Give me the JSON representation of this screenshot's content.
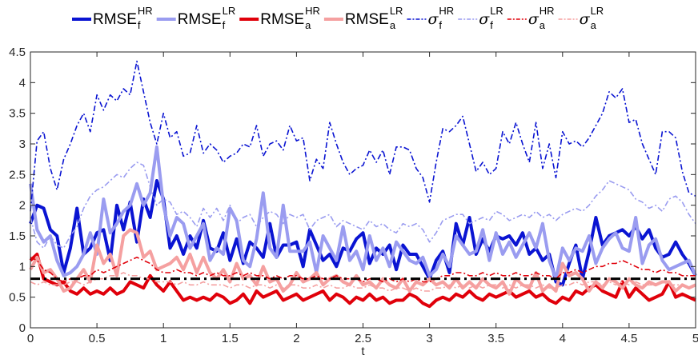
{
  "chart_data": {
    "type": "line",
    "xlabel": "t",
    "ylabel": "",
    "xlim": [
      0,
      5
    ],
    "ylim": [
      0,
      4.5
    ],
    "x_ticks": [
      "0",
      "0.5",
      "1",
      "1.5",
      "2",
      "2.5",
      "3",
      "3.5",
      "4",
      "4.5",
      "5"
    ],
    "y_ticks": [
      "0",
      "0.5",
      "1",
      "1.5",
      "2",
      "2.5",
      "3",
      "3.5",
      "4",
      "4.5"
    ],
    "grid": false,
    "legend_position": "top",
    "colors": {
      "dark_blue": "#0a14d2",
      "light_blue": "#9a9cf0",
      "dark_red": "#e0000a",
      "light_red": "#f5a0a0",
      "reference": "#000000"
    },
    "legend": [
      {
        "base": "RMSE",
        "sup": "HR",
        "sub": "f",
        "symbol": false
      },
      {
        "base": "RMSE",
        "sup": "LR",
        "sub": "f",
        "symbol": false
      },
      {
        "base": "RMSE",
        "sup": "HR",
        "sub": "a",
        "symbol": false
      },
      {
        "base": "RMSE",
        "sup": "LR",
        "sub": "a",
        "symbol": false
      },
      {
        "base": "σ",
        "sup": "HR",
        "sub": "f",
        "symbol": true
      },
      {
        "base": "σ",
        "sup": "LR",
        "sub": "f",
        "symbol": true
      },
      {
        "base": "σ",
        "sup": "HR",
        "sub": "a",
        "symbol": true
      },
      {
        "base": "σ",
        "sup": "LR",
        "sub": "a",
        "symbol": true
      }
    ],
    "reference_line": {
      "y": 0.8,
      "style": "dash-dot"
    },
    "x": [
      0,
      0.05,
      0.1,
      0.15,
      0.2,
      0.25,
      0.3,
      0.35,
      0.4,
      0.45,
      0.5,
      0.55,
      0.6,
      0.65,
      0.7,
      0.75,
      0.8,
      0.85,
      0.9,
      0.95,
      1.0,
      1.05,
      1.1,
      1.15,
      1.2,
      1.25,
      1.3,
      1.35,
      1.4,
      1.45,
      1.5,
      1.55,
      1.6,
      1.65,
      1.7,
      1.75,
      1.8,
      1.85,
      1.9,
      1.95,
      2.0,
      2.05,
      2.1,
      2.15,
      2.2,
      2.25,
      2.3,
      2.35,
      2.4,
      2.45,
      2.5,
      2.55,
      2.6,
      2.65,
      2.7,
      2.75,
      2.8,
      2.85,
      2.9,
      2.95,
      3.0,
      3.05,
      3.1,
      3.15,
      3.2,
      3.25,
      3.3,
      3.35,
      3.4,
      3.45,
      3.5,
      3.55,
      3.6,
      3.65,
      3.7,
      3.75,
      3.8,
      3.85,
      3.9,
      3.95,
      4.0,
      4.05,
      4.1,
      4.15,
      4.2,
      4.25,
      4.3,
      4.35,
      4.4,
      4.45,
      4.5,
      4.55,
      4.6,
      4.65,
      4.7,
      4.75,
      4.8,
      4.85,
      4.9,
      4.95,
      5.0
    ],
    "series": [
      {
        "name": "RMSE_f^HR",
        "color": "#0a14d2",
        "style": "solid",
        "width": 4,
        "values": [
          1.7,
          2.0,
          1.95,
          1.6,
          1.5,
          0.9,
          1.3,
          1.95,
          1.2,
          1.3,
          1.55,
          1.6,
          1.1,
          2.0,
          1.6,
          2.05,
          1.4,
          2.1,
          1.8,
          2.4,
          2.1,
          1.3,
          1.5,
          1.2,
          1.5,
          1.3,
          1.75,
          1.3,
          1.25,
          1.55,
          1.1,
          1.45,
          1.05,
          1.4,
          1.3,
          1.15,
          1.7,
          1.15,
          1.35,
          1.35,
          1.4,
          1.0,
          1.6,
          1.35,
          1.1,
          1.2,
          1.0,
          1.3,
          1.25,
          1.45,
          1.55,
          1.05,
          1.3,
          1.2,
          1.35,
          0.95,
          1.35,
          1.2,
          1.2,
          1.0,
          0.8,
          1.1,
          1.25,
          0.9,
          1.7,
          1.35,
          1.8,
          1.2,
          1.45,
          1.25,
          1.5,
          1.45,
          1.5,
          1.35,
          1.55,
          1.2,
          1.3,
          1.1,
          1.2,
          0.75,
          0.7,
          1.05,
          1.35,
          0.8,
          1.25,
          1.8,
          1.35,
          1.5,
          1.55,
          1.6,
          1.5,
          1.65,
          1.45,
          1.6,
          1.3,
          1.15,
          1.2,
          1.4,
          1.2,
          1.05,
          0.85
        ]
      },
      {
        "name": "RMSE_f^LR",
        "color": "#9a9cf0",
        "style": "solid",
        "width": 4,
        "values": [
          2.35,
          1.6,
          1.4,
          1.5,
          1.1,
          0.85,
          0.9,
          1.0,
          1.2,
          1.55,
          1.2,
          2.1,
          1.55,
          1.7,
          1.9,
          2.0,
          2.35,
          2.0,
          2.2,
          2.95,
          2.0,
          1.5,
          1.8,
          1.7,
          1.3,
          1.5,
          1.7,
          1.1,
          1.3,
          1.2,
          1.95,
          1.75,
          1.1,
          1.0,
          1.45,
          2.2,
          1.3,
          1.15,
          2.0,
          1.25,
          1.25,
          1.25,
          1.4,
          0.9,
          1.5,
          1.3,
          1.1,
          1.65,
          1.1,
          1.25,
          0.95,
          1.5,
          1.1,
          1.3,
          1.0,
          1.4,
          1.25,
          1.1,
          1.05,
          1.15,
          0.85,
          0.95,
          1.2,
          1.0,
          1.5,
          1.35,
          1.2,
          1.25,
          1.6,
          1.1,
          1.55,
          1.2,
          1.4,
          1.15,
          1.35,
          1.55,
          1.3,
          1.7,
          1.1,
          0.8,
          1.3,
          1.1,
          1.3,
          1.25,
          1.5,
          1.05,
          1.3,
          1.45,
          1.55,
          1.3,
          1.25,
          1.8,
          1.05,
          1.35,
          1.45,
          1.1,
          0.95,
          1.0,
          1.05,
          1.1,
          0.85
        ]
      },
      {
        "name": "RMSE_a^HR",
        "color": "#e0000a",
        "style": "solid",
        "width": 4,
        "values": [
          1.1,
          1.2,
          0.8,
          0.75,
          0.7,
          0.75,
          0.6,
          0.55,
          0.65,
          0.55,
          0.6,
          0.55,
          0.65,
          0.55,
          0.6,
          0.75,
          0.7,
          0.65,
          0.85,
          0.7,
          0.6,
          0.75,
          0.6,
          0.45,
          0.5,
          0.45,
          0.5,
          0.45,
          0.55,
          0.5,
          0.4,
          0.45,
          0.55,
          0.4,
          0.6,
          0.5,
          0.55,
          0.6,
          0.45,
          0.5,
          0.55,
          0.45,
          0.5,
          0.55,
          0.6,
          0.45,
          0.55,
          0.5,
          0.4,
          0.5,
          0.45,
          0.55,
          0.45,
          0.5,
          0.4,
          0.45,
          0.45,
          0.55,
          0.5,
          0.4,
          0.35,
          0.45,
          0.5,
          0.45,
          0.55,
          0.5,
          0.6,
          0.5,
          0.45,
          0.55,
          0.5,
          0.55,
          0.6,
          0.5,
          0.55,
          0.6,
          0.5,
          0.55,
          0.45,
          0.4,
          0.5,
          0.45,
          0.6,
          0.55,
          0.65,
          0.7,
          0.6,
          0.55,
          0.5,
          0.75,
          0.5,
          0.65,
          0.55,
          0.45,
          0.5,
          0.55,
          0.75,
          0.5,
          0.55,
          0.5,
          0.45
        ]
      },
      {
        "name": "RMSE_a^LR",
        "color": "#f5a0a0",
        "style": "solid",
        "width": 4,
        "values": [
          0.95,
          1.15,
          0.9,
          0.95,
          0.8,
          0.6,
          0.65,
          0.8,
          0.95,
          0.75,
          1.35,
          1.05,
          1.2,
          0.85,
          1.5,
          1.6,
          1.55,
          1.15,
          1.25,
          0.95,
          1.0,
          1.05,
          1.15,
          0.95,
          1.2,
          0.9,
          1.15,
          0.9,
          0.8,
          0.95,
          0.75,
          1.05,
          0.8,
          0.85,
          0.7,
          1.0,
          0.75,
          0.8,
          0.6,
          0.7,
          0.9,
          0.75,
          0.8,
          0.9,
          0.7,
          0.8,
          0.85,
          0.75,
          0.7,
          0.85,
          0.7,
          0.75,
          0.65,
          0.8,
          0.7,
          0.65,
          0.8,
          0.6,
          0.75,
          0.7,
          0.8,
          0.7,
          0.75,
          0.65,
          0.8,
          0.65,
          0.75,
          0.65,
          0.8,
          0.7,
          0.65,
          0.75,
          0.55,
          0.8,
          0.7,
          0.65,
          0.9,
          0.6,
          0.7,
          0.6,
          1.05,
          0.85,
          0.9,
          0.8,
          0.6,
          0.75,
          0.65,
          0.8,
          0.75,
          0.65,
          0.8,
          0.7,
          0.65,
          0.75,
          0.7,
          0.75,
          0.75,
          0.6,
          0.7,
          0.65,
          0.7
        ]
      },
      {
        "name": "σ_f^HR",
        "color": "#0a14d2",
        "style": "dashdot",
        "width": 1.6,
        "values": [
          1.9,
          3.05,
          3.2,
          2.6,
          2.25,
          2.75,
          3.0,
          3.3,
          3.5,
          3.2,
          3.8,
          3.55,
          3.8,
          3.7,
          3.9,
          3.8,
          4.35,
          3.85,
          3.35,
          3.0,
          3.5,
          3.1,
          3.2,
          2.8,
          2.85,
          3.3,
          2.85,
          3.0,
          2.9,
          2.7,
          2.8,
          2.85,
          3.0,
          2.95,
          3.3,
          2.8,
          3.0,
          3.05,
          2.9,
          3.3,
          3.05,
          3.1,
          2.4,
          2.75,
          2.6,
          3.35,
          3.0,
          2.7,
          2.5,
          2.6,
          2.65,
          2.9,
          2.7,
          2.9,
          2.5,
          2.95,
          2.95,
          2.9,
          2.6,
          2.45,
          2.05,
          2.7,
          3.25,
          3.2,
          3.3,
          3.45,
          3.0,
          2.55,
          2.7,
          2.5,
          2.6,
          3.2,
          3.0,
          3.35,
          3.0,
          2.7,
          3.35,
          2.6,
          3.0,
          2.45,
          3.2,
          3.0,
          3.05,
          2.95,
          3.1,
          3.3,
          3.5,
          3.85,
          3.75,
          3.9,
          3.35,
          3.4,
          3.0,
          2.75,
          2.5,
          3.2,
          3.2,
          3.1,
          2.55,
          2.2,
          2.15
        ]
      },
      {
        "name": "σ_f^LR",
        "color": "#9a9cf0",
        "style": "dashdot",
        "width": 1.6,
        "values": [
          1.8,
          1.4,
          1.3,
          1.5,
          1.35,
          1.3,
          1.5,
          1.65,
          1.95,
          2.15,
          2.25,
          2.3,
          2.4,
          2.5,
          2.45,
          2.6,
          2.7,
          2.65,
          2.3,
          2.0,
          2.1,
          2.05,
          1.85,
          1.9,
          1.8,
          1.65,
          1.95,
          1.8,
          1.95,
          1.75,
          2.0,
          1.7,
          1.8,
          1.85,
          1.65,
          1.8,
          1.9,
          1.85,
          1.7,
          1.85,
          1.8,
          1.85,
          1.6,
          1.75,
          1.8,
          1.85,
          1.65,
          1.75,
          1.7,
          1.65,
          1.6,
          1.75,
          1.65,
          1.7,
          1.6,
          1.55,
          1.7,
          1.65,
          1.7,
          1.6,
          1.4,
          1.55,
          1.75,
          1.8,
          1.85,
          1.85,
          1.7,
          1.75,
          1.8,
          1.75,
          1.9,
          1.85,
          1.75,
          1.8,
          1.85,
          1.8,
          1.9,
          1.8,
          1.85,
          1.75,
          1.85,
          1.9,
          1.95,
          1.9,
          2.0,
          2.15,
          2.25,
          2.4,
          2.35,
          2.3,
          2.25,
          2.1,
          2.05,
          1.95,
          2.0,
          1.9,
          2.1,
          2.15,
          2.05,
          1.85,
          1.7
        ]
      },
      {
        "name": "σ_a^HR",
        "color": "#e0000a",
        "style": "dashdot",
        "width": 1.6,
        "values": [
          1.15,
          1.1,
          0.95,
          0.9,
          0.8,
          0.75,
          0.8,
          0.8,
          0.85,
          0.85,
          0.95,
          0.9,
          0.95,
          1.0,
          1.05,
          1.1,
          1.15,
          1.1,
          1.05,
          0.95,
          0.9,
          0.9,
          0.95,
          0.9,
          0.9,
          0.85,
          0.9,
          0.85,
          0.9,
          0.85,
          0.85,
          0.9,
          0.85,
          0.9,
          0.85,
          0.85,
          0.8,
          0.85,
          0.8,
          0.85,
          0.85,
          0.8,
          0.8,
          0.85,
          0.8,
          0.8,
          0.85,
          0.8,
          0.8,
          0.8,
          0.75,
          0.8,
          0.8,
          0.75,
          0.8,
          0.75,
          0.8,
          0.75,
          0.8,
          0.75,
          0.75,
          0.8,
          0.85,
          0.85,
          0.9,
          0.9,
          0.85,
          0.85,
          0.9,
          0.85,
          0.9,
          0.85,
          0.85,
          0.9,
          0.85,
          0.85,
          0.9,
          0.85,
          0.85,
          0.8,
          0.9,
          0.9,
          0.95,
          0.9,
          0.95,
          1.0,
          1.0,
          1.05,
          1.05,
          1.1,
          1.05,
          1.0,
          0.95,
          0.95,
          0.9,
          0.95,
          0.9,
          0.9,
          0.85,
          0.85,
          0.85
        ]
      },
      {
        "name": "σ_a^LR",
        "color": "#f5a0a0",
        "style": "dashdot",
        "width": 1.6,
        "values": [
          0.75,
          0.7,
          0.75,
          0.7,
          0.7,
          0.7,
          0.75,
          0.75,
          0.7,
          0.75,
          0.8,
          0.8,
          0.85,
          0.85,
          0.9,
          0.85,
          0.85,
          0.8,
          0.8,
          0.75,
          0.75,
          0.75,
          0.7,
          0.75,
          0.7,
          0.7,
          0.75,
          0.7,
          0.7,
          0.7,
          0.65,
          0.7,
          0.7,
          0.65,
          0.7,
          0.7,
          0.65,
          0.7,
          0.65,
          0.7,
          0.7,
          0.65,
          0.65,
          0.7,
          0.65,
          0.7,
          0.65,
          0.65,
          0.7,
          0.65,
          0.65,
          0.7,
          0.65,
          0.65,
          0.6,
          0.65,
          0.65,
          0.6,
          0.65,
          0.6,
          0.6,
          0.65,
          0.65,
          0.7,
          0.65,
          0.7,
          0.65,
          0.7,
          0.65,
          0.7,
          0.7,
          0.65,
          0.7,
          0.65,
          0.7,
          0.7,
          0.65,
          0.7,
          0.65,
          0.65,
          0.7,
          0.7,
          0.75,
          0.7,
          0.75,
          0.75,
          0.7,
          0.75,
          0.7,
          0.75,
          0.7,
          0.75,
          0.7,
          0.7,
          0.7,
          0.75,
          0.7,
          0.7,
          0.7,
          0.65,
          0.7
        ]
      }
    ]
  }
}
